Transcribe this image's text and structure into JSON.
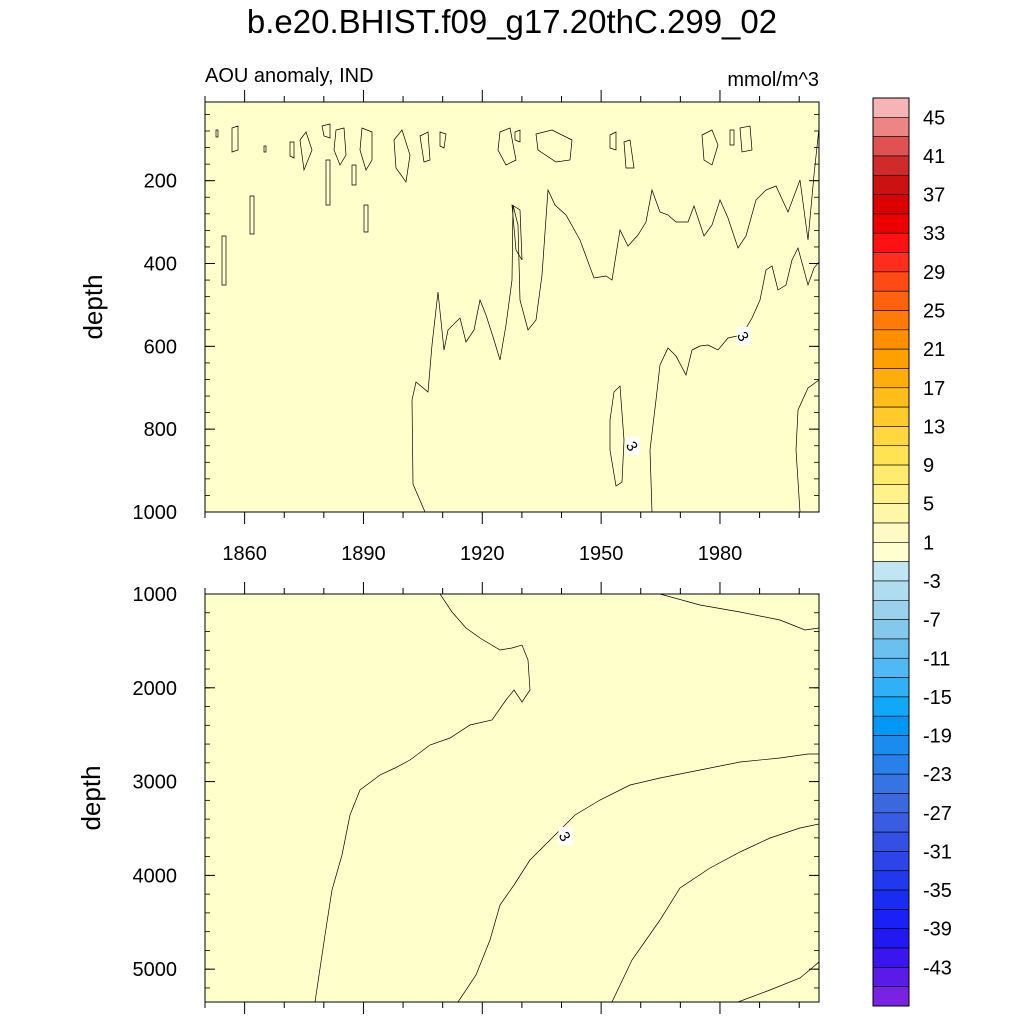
{
  "chart_data": {
    "type": "heatmap",
    "title": "b.e20.BHIST.f09_g17.20thC.299_02",
    "left_subtitle": "AOU anomaly, IND",
    "right_subtitle": "mmol/m^3",
    "x_ticks": [
      1860,
      1890,
      1920,
      1950,
      1980
    ],
    "xlim": [
      1850,
      2005
    ],
    "panels": [
      {
        "ylabel": "depth",
        "ylim": [
          1000,
          10
        ],
        "y_ticks": [
          200,
          400,
          600,
          800,
          1000
        ],
        "contour_labels": [
          {
            "text": "3",
            "x": 1958,
            "y": 840
          },
          {
            "text": "3",
            "x": 1986,
            "y": 575
          }
        ]
      },
      {
        "ylabel": "depth",
        "ylim": [
          5350,
          1000
        ],
        "y_ticks": [
          1000,
          2000,
          3000,
          4000,
          5000
        ],
        "contour_labels": [
          {
            "text": "3",
            "x": 1941,
            "y": 3580
          }
        ]
      }
    ],
    "colorbar": {
      "labels": [
        "45",
        "41",
        "37",
        "33",
        "29",
        "25",
        "21",
        "17",
        "13",
        "9",
        "5",
        "1",
        "-3",
        "-7",
        "-11",
        "-15",
        "-19",
        "-23",
        "-27",
        "-31",
        "-35",
        "-39",
        "-43"
      ],
      "colors": [
        "#f7b4b4",
        "#ee8585",
        "#e05252",
        "#d02a2a",
        "#cc1111",
        "#dd0000",
        "#ee0000",
        "#ff1111",
        "#ff2d1a",
        "#ff4a14",
        "#ff620c",
        "#ff7a06",
        "#ff8f00",
        "#ff9f00",
        "#ffad0a",
        "#ffbd1a",
        "#ffcb2b",
        "#ffd83e",
        "#ffe353",
        "#ffeb6c",
        "#fff28a",
        "#fff6a8",
        "#fffac4",
        "#ffffd0",
        "#c0e6f4",
        "#b0dcf0",
        "#9ad2ee",
        "#84c8ec",
        "#6ac0ef",
        "#50b8f2",
        "#30b0f6",
        "#10a8f8",
        "#0098f4",
        "#1a8cf0",
        "#2a80ea",
        "#3674e4",
        "#3c68de",
        "#3a5ce0",
        "#3450e4",
        "#2c44e8",
        "#2038ee",
        "#1a2cf2",
        "#1a20f6",
        "#2218f4",
        "#3a16ee",
        "#5a1ae8",
        "#7a22e4"
      ]
    },
    "fill_colors": {
      "neg": "#bde3f3",
      "c0": "#ffffcc",
      "c1": "#fff9a6",
      "c2": "#fff28a",
      "c3": "#ffeb6c",
      "c4": "#ffe353"
    }
  }
}
